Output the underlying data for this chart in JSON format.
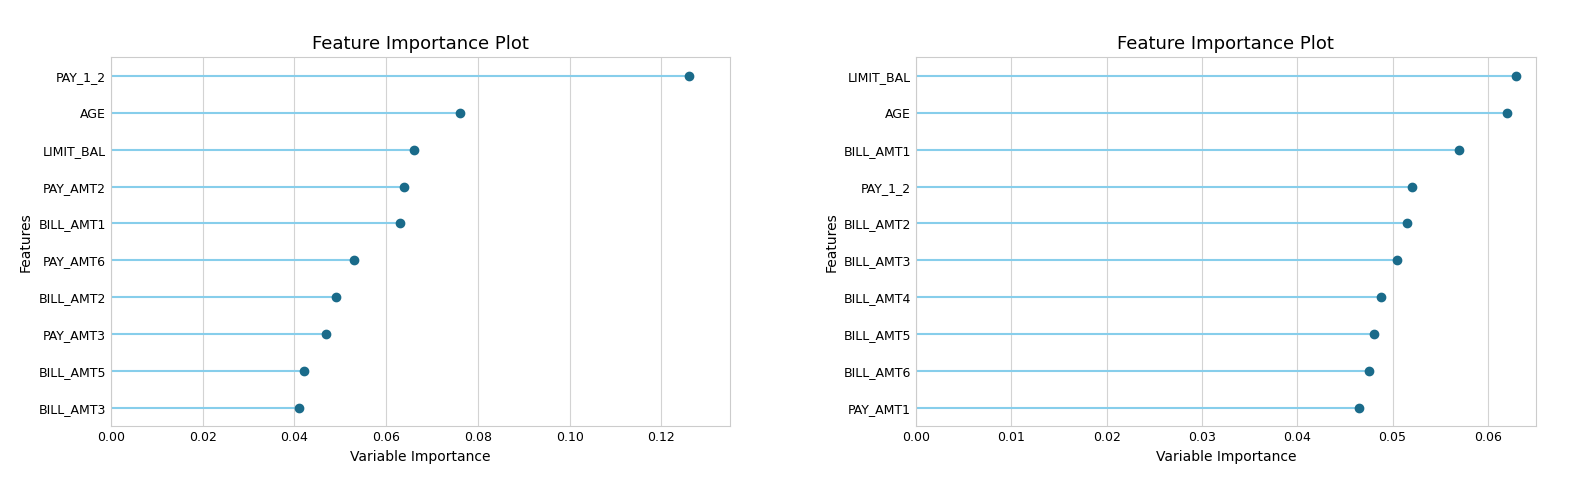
{
  "chart1": {
    "title": "Feature Importance Plot",
    "xlabel": "Variable Importance",
    "ylabel": "Features",
    "features": [
      "BILL_AMT3",
      "BILL_AMT5",
      "PAY_AMT3",
      "BILL_AMT2",
      "PAY_AMT6",
      "BILL_AMT1",
      "PAY_AMT2",
      "LIMIT_BAL",
      "AGE",
      "PAY_1_2"
    ],
    "values": [
      0.041,
      0.042,
      0.047,
      0.049,
      0.053,
      0.063,
      0.064,
      0.066,
      0.076,
      0.126
    ]
  },
  "chart2": {
    "title": "Feature Importance Plot",
    "xlabel": "Variable Importance",
    "ylabel": "Features",
    "features": [
      "PAY_AMT1",
      "BILL_AMT6",
      "BILL_AMT5",
      "BILL_AMT4",
      "BILL_AMT3",
      "BILL_AMT2",
      "PAY_1_2",
      "BILL_AMT1",
      "AGE",
      "LIMIT_BAL"
    ],
    "values": [
      0.0465,
      0.0475,
      0.048,
      0.0488,
      0.0505,
      0.0515,
      0.052,
      0.057,
      0.062,
      0.063
    ]
  },
  "dot_color": "#1a6b8a",
  "line_color": "#87ceeb",
  "bg_color": "#ffffff",
  "grid_color": "#d3d3d3",
  "title_fontsize": 13,
  "label_fontsize": 10,
  "tick_fontsize": 9,
  "chart1_xlim": [
    0.0,
    0.135
  ],
  "chart2_xlim": [
    0.0,
    0.065
  ]
}
